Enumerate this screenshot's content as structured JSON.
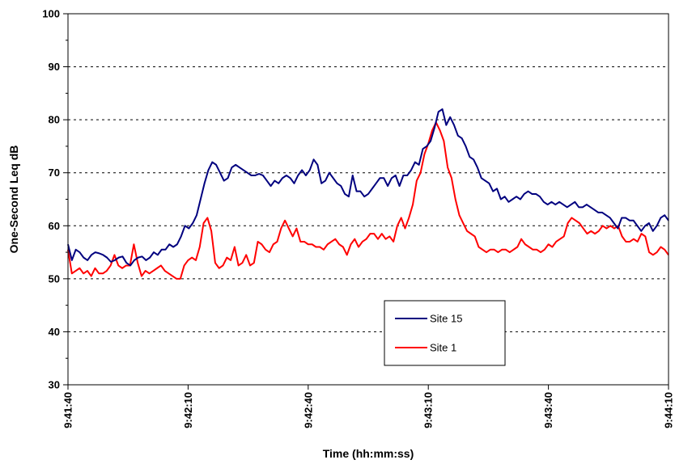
{
  "chart_data": {
    "type": "line",
    "title": "",
    "xlabel": "Time (hh:mm:ss)",
    "ylabel": "One-Second Leq dB",
    "ylim": [
      30,
      100
    ],
    "yticks": [
      "30",
      "40",
      "50",
      "60",
      "70",
      "80",
      "90",
      "100"
    ],
    "xlim_seconds_from_start": [
      0,
      150
    ],
    "xticks": [
      "9:41:40",
      "9:42:10",
      "9:42:40",
      "9:43:10",
      "9:43:40",
      "9:44:10"
    ],
    "grid": "horizontal dashed",
    "legend_position": "lower-right",
    "series": [
      {
        "name": "Site 15",
        "color": "#00007f",
        "values": [
          56.5,
          53.5,
          55.5,
          55,
          54,
          53.5,
          54.5,
          55,
          54.8,
          54.5,
          54,
          53.2,
          53.5,
          54,
          54.2,
          53,
          52.5,
          53.5,
          54,
          54.2,
          53.5,
          54,
          55,
          54.5,
          55.5,
          55.5,
          56.5,
          56,
          56.5,
          58,
          60,
          59.5,
          60.5,
          62,
          65,
          68,
          70.5,
          72,
          71.5,
          70,
          68.5,
          69,
          71,
          71.5,
          71,
          70.5,
          70,
          69.5,
          69.5,
          69.8,
          69.5,
          68.5,
          67.5,
          68.5,
          68,
          69,
          69.5,
          69,
          68,
          69.5,
          70.5,
          69.5,
          70.5,
          72.5,
          71.5,
          68,
          68.5,
          70,
          69,
          68,
          67.5,
          66,
          65.5,
          69.5,
          66.5,
          66.5,
          65.5,
          66,
          67,
          68,
          69,
          69,
          67.5,
          69,
          69.5,
          67.5,
          69.5,
          69.5,
          70.5,
          72,
          71.5,
          74.5,
          75,
          76,
          78.5,
          81.5,
          82,
          79,
          80.5,
          79,
          77,
          76.5,
          75,
          73,
          72.5,
          71,
          69,
          68.5,
          68,
          66.5,
          67,
          65,
          65.5,
          64.5,
          65,
          65.5,
          65,
          66,
          66.5,
          66,
          66,
          65.5,
          64.5,
          64,
          64.5,
          64,
          64.5,
          64,
          63.5,
          64,
          64.5,
          63.5,
          63.5,
          64,
          63.5,
          63,
          62.5,
          62.5,
          62,
          61.5,
          60.5,
          59.5,
          61.5,
          61.5,
          61,
          61,
          60,
          59,
          60,
          60.5,
          59,
          60,
          61.5,
          62,
          61
        ]
      },
      {
        "name": "Site 1",
        "color": "#ff0000",
        "values": [
          55.5,
          51,
          51.5,
          52,
          51,
          51.5,
          50.5,
          52,
          51,
          51,
          51.5,
          52.5,
          54.5,
          52.5,
          52,
          52.5,
          52.5,
          56.5,
          53,
          50.5,
          51.5,
          51,
          51.5,
          52,
          52.5,
          51.5,
          51,
          50.5,
          50,
          50,
          52.5,
          53.5,
          54,
          53.5,
          56,
          60.5,
          61.5,
          59,
          53,
          52,
          52.5,
          54,
          53.5,
          56,
          52.5,
          53,
          54.5,
          52.5,
          53,
          57,
          56.5,
          55.5,
          55,
          56.5,
          57,
          59.5,
          61,
          59.5,
          58,
          59.5,
          57,
          57,
          56.5,
          56.5,
          56,
          56,
          55.5,
          56.5,
          57,
          57.5,
          56.5,
          56,
          54.5,
          56.5,
          57.5,
          56,
          57,
          57.5,
          58.5,
          58.5,
          57.5,
          58.5,
          57.5,
          58,
          57,
          60,
          61.5,
          59.5,
          61.5,
          64,
          68.5,
          70,
          73.5,
          75.5,
          78,
          79.5,
          78,
          76,
          71,
          69,
          65,
          62,
          60.5,
          59,
          58.5,
          58,
          56,
          55.5,
          55,
          55.5,
          55.5,
          55,
          55.5,
          55.5,
          55,
          55.5,
          56,
          57.5,
          56.5,
          56,
          55.5,
          55.5,
          55,
          55.5,
          56.5,
          56,
          57,
          57.5,
          58,
          60.5,
          61.5,
          61,
          60.5,
          59.5,
          58.5,
          59,
          58.5,
          59,
          60,
          59.5,
          60,
          59.5,
          60,
          58,
          57,
          57,
          57.5,
          57,
          58.5,
          58,
          55,
          54.5,
          55,
          56,
          55.5,
          54.5
        ]
      }
    ]
  }
}
